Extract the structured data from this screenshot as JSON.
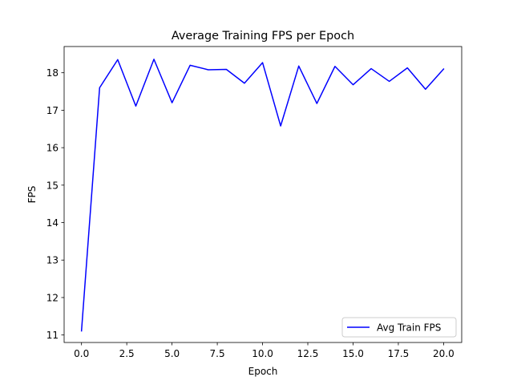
{
  "chart_data": {
    "type": "line",
    "title": "Average Training FPS per Epoch",
    "xlabel": "Epoch",
    "ylabel": "FPS",
    "xlim": [
      -0.96,
      21.0
    ],
    "ylim": [
      10.8,
      18.7
    ],
    "xticks": [
      0.0,
      2.5,
      5.0,
      7.5,
      10.0,
      12.5,
      15.0,
      17.5,
      20.0
    ],
    "xtick_labels": [
      "0.0",
      "2.5",
      "5.0",
      "7.5",
      "10.0",
      "12.5",
      "15.0",
      "17.5",
      "20.0"
    ],
    "yticks": [
      11,
      12,
      13,
      14,
      15,
      16,
      17,
      18
    ],
    "ytick_labels": [
      "11",
      "12",
      "13",
      "14",
      "15",
      "16",
      "17",
      "18"
    ],
    "grid": false,
    "legend": {
      "position": "lower-right"
    },
    "series": [
      {
        "name": "Avg Train FPS",
        "color": "#0000ff",
        "x": [
          0,
          1,
          2,
          3,
          4,
          5,
          6,
          7,
          8,
          9,
          10,
          11,
          12,
          13,
          14,
          15,
          16,
          17,
          18,
          19,
          20
        ],
        "values": [
          11.11,
          17.6,
          18.35,
          17.11,
          18.36,
          17.2,
          18.2,
          18.08,
          18.09,
          17.72,
          18.27,
          16.58,
          18.18,
          17.18,
          18.17,
          17.68,
          18.11,
          17.77,
          18.13,
          17.56,
          18.1
        ]
      }
    ]
  }
}
